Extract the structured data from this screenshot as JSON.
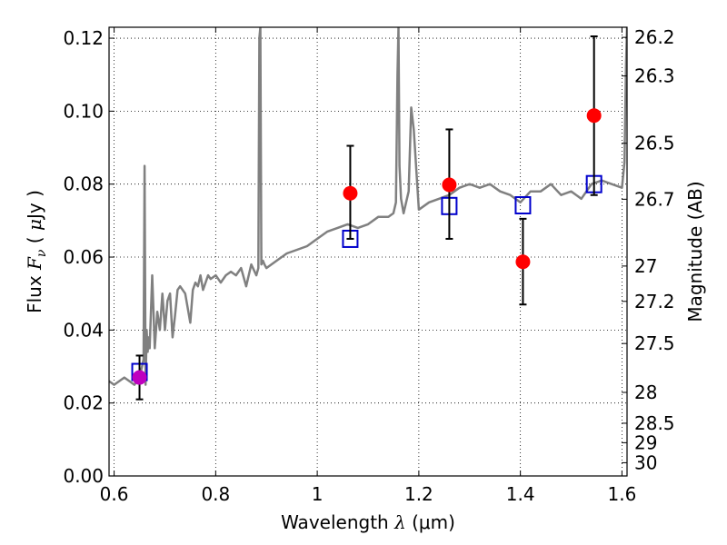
{
  "chart_data": {
    "type": "scatter",
    "xlabel": "Wavelength  λ (μm)",
    "ylabel": "Flux  F_ν  ( μJy )",
    "ylabel_parts": {
      "prefix": "Flux  ",
      "symbol": "F",
      "subscript": "ν",
      "open": "  (  ",
      "mu": "μ",
      "unit": "Jy )"
    },
    "xlabel_parts": {
      "text": "Wavelength  ",
      "lambda": "λ",
      "unit": " (μm)"
    },
    "y2label": "Magnitude (AB)",
    "xlim": [
      0.59,
      1.61
    ],
    "ylim": [
      0.0,
      0.123
    ],
    "grid": true,
    "x_ticks": [
      {
        "value": 0.6,
        "label": "0.6"
      },
      {
        "value": 0.8,
        "label": "0.8"
      },
      {
        "value": 1.0,
        "label": "1"
      },
      {
        "value": 1.2,
        "label": "1.2"
      },
      {
        "value": 1.4,
        "label": "1.4"
      },
      {
        "value": 1.6,
        "label": "1.6"
      }
    ],
    "y_ticks": [
      {
        "value": 0.0,
        "label": "0.00"
      },
      {
        "value": 0.02,
        "label": "0.02"
      },
      {
        "value": 0.04,
        "label": "0.04"
      },
      {
        "value": 0.06,
        "label": "0.06"
      },
      {
        "value": 0.08,
        "label": "0.08"
      },
      {
        "value": 0.1,
        "label": "0.10"
      },
      {
        "value": 0.12,
        "label": "0.12"
      }
    ],
    "y2_ticks": [
      {
        "mag": 26.2,
        "label": "26.2"
      },
      {
        "mag": 26.3,
        "label": "26.3"
      },
      {
        "mag": 26.5,
        "label": "26.5"
      },
      {
        "mag": 26.7,
        "label": "26.7"
      },
      {
        "mag": 27.0,
        "label": "27"
      },
      {
        "mag": 27.2,
        "label": "27.2"
      },
      {
        "mag": 27.5,
        "label": "27.5"
      },
      {
        "mag": 28.0,
        "label": "28"
      },
      {
        "mag": 28.5,
        "label": "28.5"
      },
      {
        "mag": 29.0,
        "label": "29"
      },
      {
        "mag": 30.0,
        "label": "30"
      }
    ],
    "series": [
      {
        "kind": "line",
        "color": "#808080",
        "x": [
          0.59,
          0.6,
          0.61,
          0.62,
          0.63,
          0.64,
          0.65,
          0.655,
          0.658,
          0.66,
          0.662,
          0.664,
          0.666,
          0.668,
          0.67,
          0.675,
          0.68,
          0.685,
          0.69,
          0.695,
          0.7,
          0.705,
          0.71,
          0.715,
          0.72,
          0.725,
          0.73,
          0.735,
          0.74,
          0.75,
          0.755,
          0.76,
          0.765,
          0.77,
          0.775,
          0.78,
          0.785,
          0.79,
          0.8,
          0.81,
          0.82,
          0.83,
          0.84,
          0.85,
          0.86,
          0.87,
          0.88,
          0.884,
          0.886,
          0.888,
          0.89,
          0.893,
          0.896,
          0.9,
          0.92,
          0.94,
          0.96,
          0.98,
          1.0,
          1.02,
          1.04,
          1.06,
          1.08,
          1.1,
          1.12,
          1.14,
          1.15,
          1.155,
          1.158,
          1.16,
          1.162,
          1.165,
          1.17,
          1.18,
          1.185,
          1.19,
          1.2,
          1.22,
          1.24,
          1.26,
          1.28,
          1.3,
          1.32,
          1.34,
          1.36,
          1.38,
          1.4,
          1.42,
          1.44,
          1.46,
          1.48,
          1.5,
          1.52,
          1.54,
          1.56,
          1.58,
          1.6,
          1.605,
          1.608,
          1.61
        ],
        "y": [
          0.026,
          0.025,
          0.026,
          0.027,
          0.026,
          0.025,
          0.027,
          0.03,
          0.032,
          0.085,
          0.025,
          0.04,
          0.034,
          0.038,
          0.035,
          0.055,
          0.035,
          0.045,
          0.04,
          0.05,
          0.04,
          0.048,
          0.05,
          0.038,
          0.044,
          0.051,
          0.052,
          0.051,
          0.05,
          0.042,
          0.051,
          0.053,
          0.052,
          0.055,
          0.051,
          0.053,
          0.055,
          0.054,
          0.055,
          0.053,
          0.055,
          0.056,
          0.055,
          0.057,
          0.052,
          0.058,
          0.055,
          0.057,
          0.12,
          0.123,
          0.058,
          0.059,
          0.058,
          0.057,
          0.059,
          0.061,
          0.062,
          0.063,
          0.065,
          0.067,
          0.068,
          0.069,
          0.068,
          0.069,
          0.071,
          0.071,
          0.072,
          0.075,
          0.11,
          0.123,
          0.085,
          0.076,
          0.072,
          0.078,
          0.101,
          0.095,
          0.073,
          0.075,
          0.076,
          0.077,
          0.079,
          0.08,
          0.079,
          0.08,
          0.078,
          0.077,
          0.075,
          0.078,
          0.078,
          0.08,
          0.077,
          0.078,
          0.076,
          0.08,
          0.081,
          0.08,
          0.079,
          0.086,
          0.113,
          0.123
        ]
      },
      {
        "kind": "squares",
        "color": "#0000cc",
        "x": [
          0.65,
          1.065,
          1.26,
          1.405,
          1.545
        ],
        "y": [
          0.0285,
          0.065,
          0.074,
          0.0742,
          0.08
        ]
      },
      {
        "kind": "points",
        "color": "#ff0000",
        "x": [
          0.65,
          1.065,
          1.26,
          1.405,
          1.545
        ],
        "y": [
          0.027,
          0.0775,
          0.0798,
          0.0587,
          0.0988
        ],
        "err_low": [
          0.021,
          0.065,
          0.065,
          0.047,
          0.077
        ],
        "err_high": [
          0.033,
          0.0905,
          0.095,
          0.0705,
          0.1205
        ],
        "point_colors": [
          "#bf00bf",
          "#ff0000",
          "#ff0000",
          "#ff0000",
          "#ff0000"
        ]
      }
    ]
  }
}
